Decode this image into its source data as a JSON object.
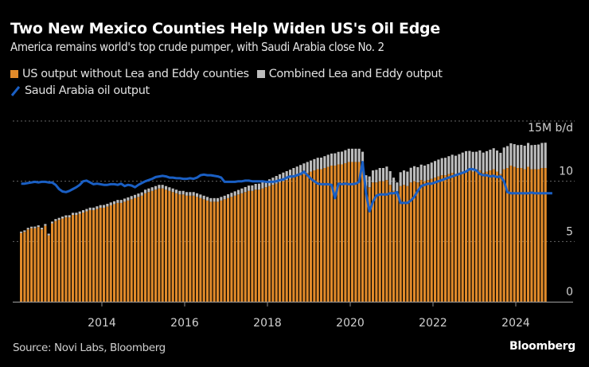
{
  "title": "Two New Mexico Counties Help Widen US's Oil Edge",
  "subtitle": "America remains world's top crude pumper, with Saudi Arabia close No. 2",
  "source": "Source: Novi Labs, Bloomberg",
  "brand": "Bloomberg",
  "colors": {
    "us_ex": "#e08a2a",
    "lea_eddy": "#bdbdbd",
    "saudi": "#1a5fc4",
    "grid": "#666666",
    "axis": "#8a8a8a",
    "text": "#d0d0d0"
  },
  "chart_data": {
    "type": "bar",
    "stacked": true,
    "title": "Two New Mexico Counties Help Widen US's Oil Edge",
    "unit_label": "15M b/d",
    "ylabel": "",
    "xlabel": "",
    "ylim": [
      0,
      15
    ],
    "yticks": [
      0,
      5,
      10,
      15
    ],
    "ytick_labels": [
      "0",
      "5",
      "10",
      "15M b/d"
    ],
    "xticks": [
      "2014",
      "2016",
      "2018",
      "2020",
      "2022",
      "2024"
    ],
    "x_start": "2012-01",
    "frequency": "monthly",
    "grid": true,
    "legend_position": "top-left",
    "series": [
      {
        "name": "US output without Lea and Eddy counties",
        "kind": "bar",
        "values": [
          5.7,
          5.8,
          6.0,
          6.1,
          6.1,
          6.2,
          6.0,
          6.3,
          5.5,
          6.5,
          6.7,
          6.8,
          6.9,
          7.0,
          7.0,
          7.2,
          7.2,
          7.3,
          7.4,
          7.5,
          7.6,
          7.6,
          7.7,
          7.8,
          7.8,
          7.9,
          8.0,
          8.1,
          8.2,
          8.2,
          8.3,
          8.4,
          8.5,
          8.6,
          8.7,
          8.8,
          9.0,
          9.1,
          9.2,
          9.3,
          9.4,
          9.4,
          9.3,
          9.2,
          9.1,
          9.0,
          8.9,
          8.9,
          8.8,
          8.8,
          8.8,
          8.7,
          8.6,
          8.5,
          8.4,
          8.3,
          8.3,
          8.3,
          8.4,
          8.5,
          8.6,
          8.7,
          8.8,
          8.9,
          9.0,
          9.1,
          9.2,
          9.2,
          9.3,
          9.3,
          9.4,
          9.5,
          9.6,
          9.7,
          9.8,
          9.9,
          10.0,
          10.1,
          10.2,
          10.3,
          10.4,
          10.5,
          10.6,
          10.7,
          10.8,
          10.9,
          11.0,
          11.0,
          11.1,
          11.2,
          11.3,
          11.3,
          11.4,
          11.4,
          11.5,
          11.6,
          11.6,
          11.6,
          11.6,
          11.4,
          9.6,
          9.5,
          9.9,
          9.9,
          10.0,
          10.0,
          10.1,
          9.7,
          9.2,
          8.8,
          9.6,
          9.7,
          9.6,
          9.9,
          10.0,
          9.9,
          10.1,
          10.0,
          10.1,
          10.2,
          10.3,
          10.4,
          10.5,
          10.5,
          10.6,
          10.7,
          10.6,
          10.7,
          10.8,
          10.9,
          10.9,
          10.8,
          10.8,
          10.9,
          10.7,
          10.8,
          10.9,
          11.0,
          10.8,
          10.6,
          11.0,
          11.1,
          11.3,
          11.2,
          11.1,
          11.1,
          11.0,
          11.2,
          11.0,
          11.0,
          11.0,
          11.1,
          11.1
        ],
        "color": "#e08a2a"
      },
      {
        "name": "Combined Lea and Eddy output",
        "kind": "bar",
        "values": [
          0.12,
          0.12,
          0.13,
          0.13,
          0.14,
          0.14,
          0.14,
          0.15,
          0.15,
          0.15,
          0.16,
          0.16,
          0.17,
          0.17,
          0.18,
          0.18,
          0.19,
          0.19,
          0.2,
          0.2,
          0.21,
          0.21,
          0.22,
          0.22,
          0.23,
          0.23,
          0.24,
          0.24,
          0.25,
          0.25,
          0.26,
          0.26,
          0.27,
          0.27,
          0.28,
          0.28,
          0.3,
          0.3,
          0.3,
          0.3,
          0.3,
          0.3,
          0.3,
          0.3,
          0.3,
          0.3,
          0.3,
          0.3,
          0.3,
          0.3,
          0.3,
          0.3,
          0.3,
          0.3,
          0.3,
          0.3,
          0.3,
          0.3,
          0.3,
          0.3,
          0.32,
          0.34,
          0.36,
          0.38,
          0.4,
          0.42,
          0.44,
          0.46,
          0.48,
          0.5,
          0.52,
          0.54,
          0.56,
          0.6,
          0.64,
          0.68,
          0.72,
          0.74,
          0.76,
          0.8,
          0.82,
          0.85,
          0.88,
          0.9,
          0.92,
          0.94,
          0.95,
          0.96,
          0.98,
          1.0,
          1.0,
          1.02,
          1.04,
          1.06,
          1.08,
          1.1,
          1.1,
          1.1,
          1.1,
          1.05,
          0.9,
          0.9,
          1.0,
          1.05,
          1.1,
          1.1,
          1.12,
          1.14,
          1.1,
          1.1,
          1.15,
          1.2,
          1.2,
          1.22,
          1.25,
          1.27,
          1.28,
          1.3,
          1.32,
          1.35,
          1.38,
          1.4,
          1.42,
          1.45,
          1.48,
          1.5,
          1.52,
          1.55,
          1.58,
          1.6,
          1.62,
          1.64,
          1.65,
          1.66,
          1.68,
          1.7,
          1.72,
          1.74,
          1.75,
          1.76,
          1.8,
          1.82,
          1.85,
          1.88,
          1.9,
          1.92,
          1.95,
          1.98,
          2.0,
          2.02,
          2.05,
          2.08,
          2.1
        ],
        "color": "#bdbdbd"
      },
      {
        "name": "Saudi Arabia oil output",
        "kind": "line",
        "values": [
          9.8,
          9.8,
          9.85,
          9.9,
          9.95,
          9.9,
          9.95,
          9.95,
          9.9,
          9.9,
          9.7,
          9.35,
          9.15,
          9.1,
          9.2,
          9.35,
          9.5,
          9.7,
          10.0,
          10.05,
          9.9,
          9.75,
          9.8,
          9.75,
          9.7,
          9.7,
          9.75,
          9.75,
          9.7,
          9.8,
          9.6,
          9.7,
          9.65,
          9.5,
          9.7,
          9.85,
          10.0,
          10.1,
          10.2,
          10.35,
          10.4,
          10.45,
          10.4,
          10.3,
          10.3,
          10.25,
          10.25,
          10.2,
          10.2,
          10.25,
          10.2,
          10.3,
          10.5,
          10.55,
          10.5,
          10.5,
          10.45,
          10.4,
          10.3,
          9.95,
          9.95,
          9.95,
          9.95,
          10.0,
          10.0,
          10.05,
          10.05,
          10.0,
          10.0,
          10.0,
          10.0,
          9.95,
          9.95,
          9.95,
          10.0,
          10.1,
          10.15,
          10.3,
          10.4,
          10.4,
          10.5,
          10.6,
          10.8,
          10.5,
          10.2,
          10.0,
          9.8,
          9.75,
          9.75,
          9.75,
          9.7,
          8.6,
          9.8,
          9.75,
          9.8,
          9.75,
          9.75,
          9.8,
          9.95,
          11.6,
          9.0,
          7.5,
          8.3,
          8.8,
          8.9,
          8.9,
          8.9,
          9.0,
          9.0,
          9.1,
          8.2,
          8.2,
          8.2,
          8.4,
          8.7,
          9.2,
          9.6,
          9.7,
          9.8,
          9.8,
          9.9,
          10.0,
          10.1,
          10.2,
          10.3,
          10.4,
          10.5,
          10.6,
          10.7,
          10.8,
          11.0,
          11.0,
          10.9,
          10.6,
          10.5,
          10.5,
          10.4,
          10.45,
          10.35,
          10.4,
          10.0,
          9.1,
          9.0,
          9.0,
          9.0,
          9.0,
          9.0,
          9.0,
          9.05,
          9.0,
          9.0,
          9.0,
          9.0,
          9.0,
          9.0
        ],
        "color": "#1a5fc4"
      }
    ]
  },
  "legend": [
    {
      "label": "US output without Lea and Eddy counties",
      "type": "square",
      "color": "#e08a2a"
    },
    {
      "label": "Combined Lea and Eddy output",
      "type": "square",
      "color": "#bdbdbd"
    },
    {
      "label": "Saudi Arabia oil output",
      "type": "line",
      "color": "#1a5fc4"
    }
  ]
}
